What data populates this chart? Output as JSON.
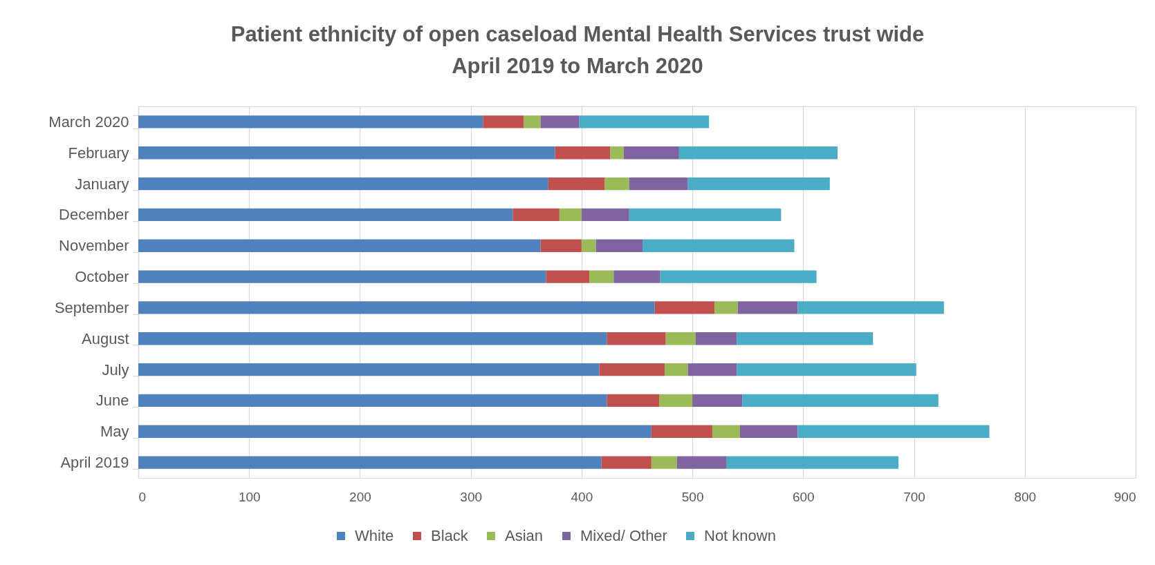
{
  "chart_data": {
    "type": "bar",
    "orientation": "horizontal",
    "stacked": true,
    "title": "Patient ethnicity of open caseload Mental Health Services trust wide\nApril 2019 to March 2020",
    "categories": [
      "March 2020",
      "February",
      "January",
      "December",
      "November",
      "October",
      "September",
      "August",
      "July",
      "June",
      "May",
      "April 2019"
    ],
    "series": [
      {
        "name": "White",
        "color": "#4f81bd",
        "values": [
          311,
          376,
          370,
          338,
          363,
          368,
          466,
          423,
          416,
          423,
          463,
          418
        ]
      },
      {
        "name": "Black",
        "color": "#c0504d",
        "values": [
          37,
          50,
          51,
          42,
          37,
          39,
          54,
          53,
          59,
          47,
          55,
          45
        ]
      },
      {
        "name": "Asian",
        "color": "#9bbb59",
        "values": [
          15,
          12,
          22,
          20,
          13,
          22,
          21,
          27,
          21,
          30,
          25,
          23
        ]
      },
      {
        "name": "Mixed/ Other",
        "color": "#8064a2",
        "values": [
          35,
          50,
          53,
          43,
          42,
          42,
          54,
          37,
          44,
          45,
          52,
          45
        ]
      },
      {
        "name": "Not known",
        "color": "#4bacc6",
        "values": [
          117,
          143,
          128,
          137,
          137,
          141,
          132,
          123,
          162,
          177,
          173,
          155
        ]
      }
    ],
    "xlim": [
      0,
      900
    ],
    "xticks": [
      0,
      100,
      200,
      300,
      400,
      500,
      600,
      700,
      800,
      900
    ],
    "grid": "x",
    "legend": "bottom"
  }
}
